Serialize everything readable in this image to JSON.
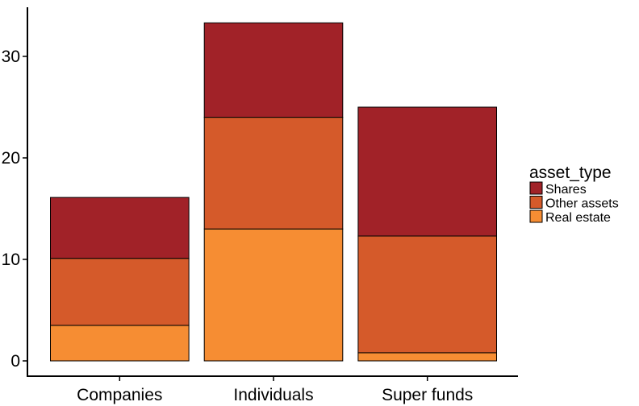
{
  "chart_data": {
    "type": "bar",
    "stacked": true,
    "categories": [
      "Companies",
      "Individuals",
      "Super funds"
    ],
    "series": [
      {
        "name": "Real estate",
        "color": "#f68d33",
        "values": [
          3.5,
          13.0,
          0.8
        ]
      },
      {
        "name": "Other assets",
        "color": "#d55a2a",
        "values": [
          6.6,
          11.0,
          11.5
        ]
      },
      {
        "name": "Shares",
        "color": "#a12228",
        "values": [
          6.0,
          9.3,
          12.7
        ]
      }
    ],
    "title": "",
    "xlabel": "",
    "ylabel": "",
    "ylim": [
      0,
      35
    ],
    "yticks": [
      0,
      10,
      20,
      30
    ],
    "grid": false,
    "legend": {
      "title": "asset_type",
      "position": "right",
      "order": [
        "Shares",
        "Other assets",
        "Real estate"
      ]
    }
  }
}
